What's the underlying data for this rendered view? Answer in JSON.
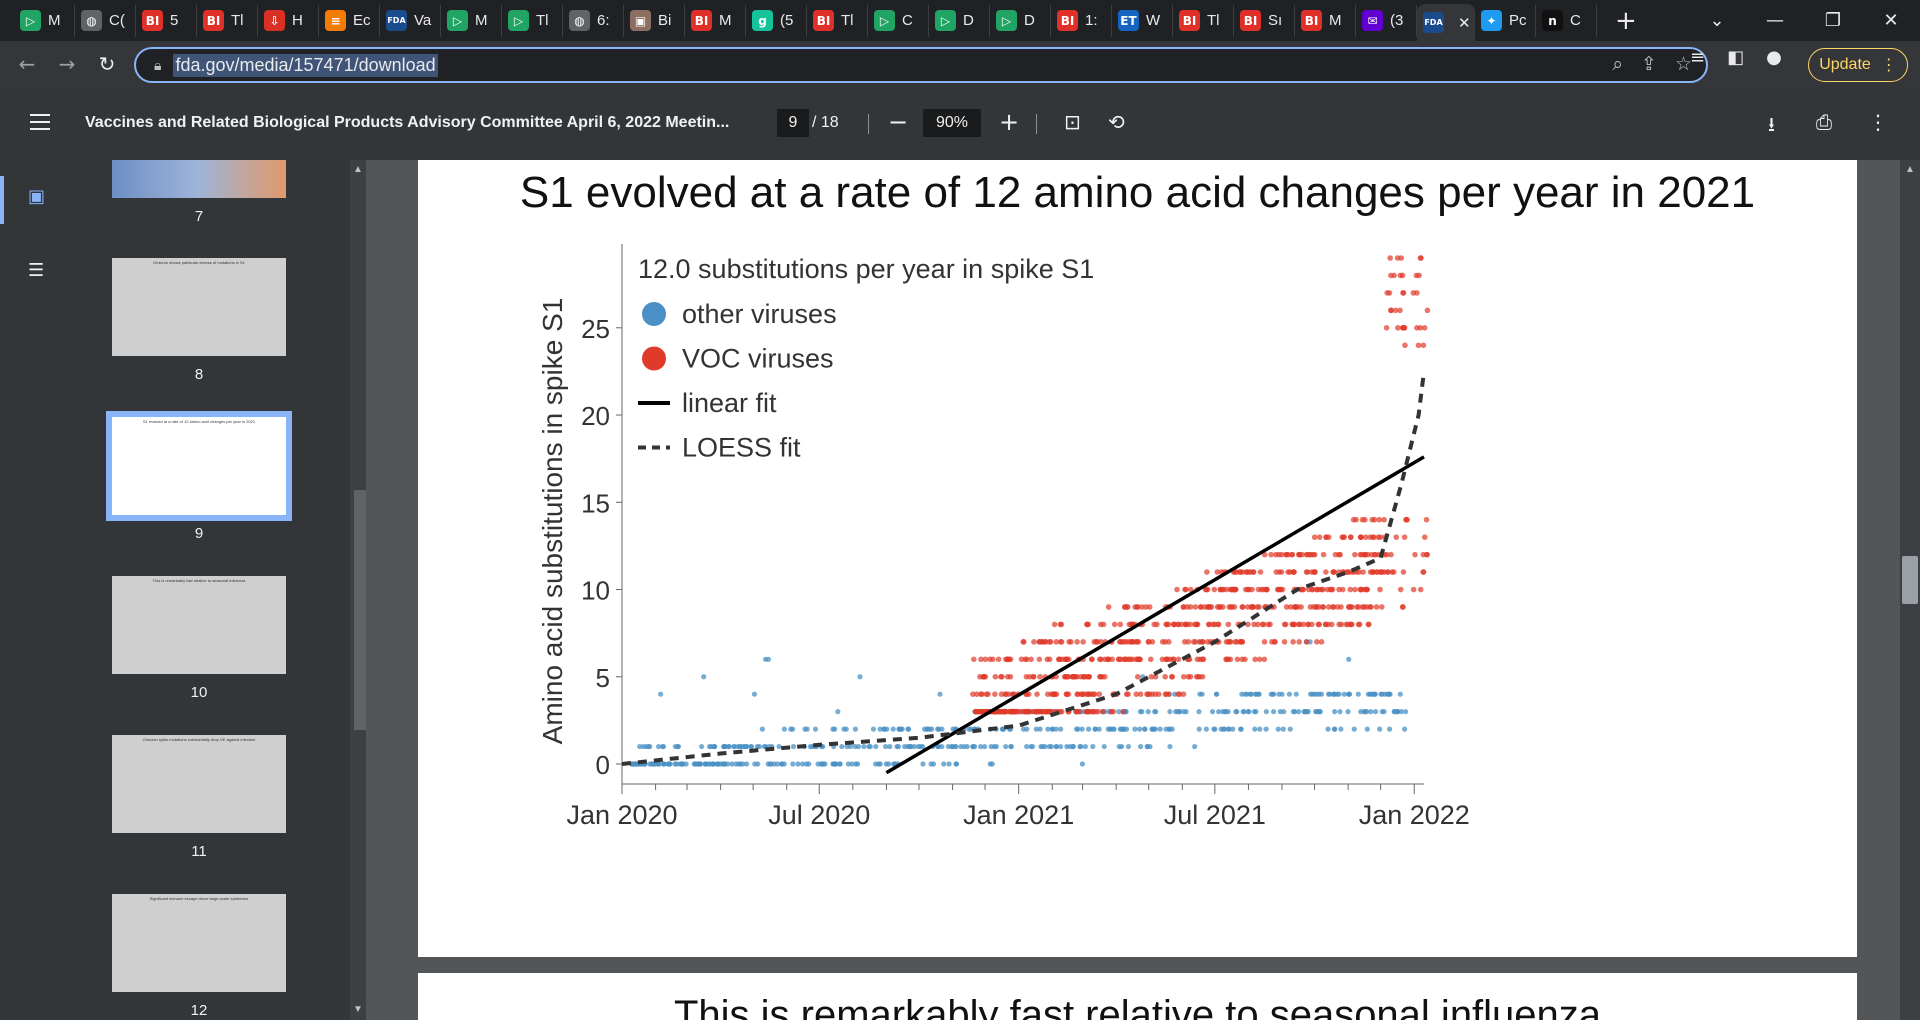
{
  "browser": {
    "tabs": [
      {
        "label": "M",
        "icon": "play-icon",
        "color": "#1fa463",
        "glyph": "▷"
      },
      {
        "label": "C(",
        "icon": "globe-icon",
        "color": "#5f6368",
        "glyph": "◍"
      },
      {
        "label": "5",
        "icon": "bi-logo-icon",
        "color": "#e0302a",
        "glyph": "BI"
      },
      {
        "label": "Tl",
        "icon": "bi-logo-icon",
        "color": "#e0302a",
        "glyph": "BI"
      },
      {
        "label": "H",
        "icon": "download-red-icon",
        "color": "#d93025",
        "glyph": "⇩"
      },
      {
        "label": "Ec",
        "icon": "bookmark-orange-icon",
        "color": "#f57c00",
        "glyph": "≡"
      },
      {
        "label": "Va",
        "icon": "fda-logo-icon",
        "color": "#1a4b8c",
        "glyph": "FDA"
      },
      {
        "label": "M",
        "icon": "play-icon",
        "color": "#1fa463",
        "glyph": "▷"
      },
      {
        "label": "Tl",
        "icon": "play-icon",
        "color": "#1fa463",
        "glyph": "▷"
      },
      {
        "label": "6:",
        "icon": "globe-icon",
        "color": "#5f6368",
        "glyph": "◍"
      },
      {
        "label": "Bi",
        "icon": "photo-icon",
        "color": "#8d6e63",
        "glyph": "▣"
      },
      {
        "label": "M",
        "icon": "bi-logo-icon",
        "color": "#e0302a",
        "glyph": "BI"
      },
      {
        "label": "(5",
        "icon": "g-logo-icon",
        "color": "#15c39a",
        "glyph": "g"
      },
      {
        "label": "Tl",
        "icon": "bi-logo-icon",
        "color": "#e0302a",
        "glyph": "BI"
      },
      {
        "label": "C",
        "icon": "play-icon",
        "color": "#1fa463",
        "glyph": "▷"
      },
      {
        "label": "D",
        "icon": "play-icon",
        "color": "#1fa463",
        "glyph": "▷"
      },
      {
        "label": "D",
        "icon": "play-icon",
        "color": "#1fa463",
        "glyph": "▷"
      },
      {
        "label": "1:",
        "icon": "bi-logo-icon",
        "color": "#e0302a",
        "glyph": "BI"
      },
      {
        "label": "W",
        "icon": "et-logo-icon",
        "color": "#1565c0",
        "glyph": "ET"
      },
      {
        "label": "Tl",
        "icon": "bi-logo-icon",
        "color": "#e0302a",
        "glyph": "BI"
      },
      {
        "label": "Sı",
        "icon": "bi-logo-icon",
        "color": "#e0302a",
        "glyph": "BI"
      },
      {
        "label": "M",
        "icon": "bi-logo-icon",
        "color": "#e0302a",
        "glyph": "BI"
      },
      {
        "label": "(3",
        "icon": "mail-icon",
        "color": "#6001d2",
        "glyph": "✉"
      },
      {
        "label": "",
        "icon": "fda-logo-icon",
        "color": "#1a4b8c",
        "glyph": "FDA",
        "active": true
      },
      {
        "label": "Pc",
        "icon": "twitter-icon",
        "color": "#1d9bf0",
        "glyph": "✦"
      },
      {
        "label": "C",
        "icon": "n-logo-icon",
        "color": "#111111",
        "glyph": "n"
      }
    ],
    "url": "fda.gov/media/157471/download",
    "update_label": "Update"
  },
  "pdf": {
    "title": "Vaccines and Related Biological Products Advisory Committee April 6, 2022 Meetin...",
    "page_current": "9",
    "page_total": "/ 18",
    "zoom": "90%",
    "thumbnails": [
      {
        "num": "7",
        "title": ""
      },
      {
        "num": "8",
        "title": "Omicron shows particular excess of mutations in S1"
      },
      {
        "num": "9",
        "title": "S1 evolved at a rate of 12 amino acid changes per year in 2021",
        "selected": true
      },
      {
        "num": "10",
        "title": "This is remarkably fast relative to seasonal influenza"
      },
      {
        "num": "11",
        "title": "Omicron spike mutations substantially drop VE against infection"
      },
      {
        "num": "12",
        "title": "Significant immune escape drove large-scale epidemics"
      }
    ],
    "slide_title": "S1 evolved at a rate of 12 amino acid changes per year in 2021",
    "next_slide_title": "This is remarkably fast relative to seasonal influenza"
  },
  "chart_data": {
    "type": "scatter",
    "title": "S1 evolved at a rate of 12 amino acid changes per year in 2021",
    "annotation": "12.0 substitutions per year in spike S1",
    "ylabel": "Amino acid substitutions in spike S1",
    "xlabel": "",
    "x_ticks": [
      "Jan 2020",
      "Jul 2020",
      "Jan 2021",
      "Jul 2021",
      "Jan 2022"
    ],
    "y_ticks": [
      0,
      5,
      10,
      15,
      20,
      25
    ],
    "ylim": [
      0,
      29
    ],
    "xlim": [
      "2020-01-01",
      "2022-01-10"
    ],
    "legend": [
      {
        "label": "other viruses",
        "marker": "circle",
        "color": "#4a90c4"
      },
      {
        "label": "VOC viruses",
        "marker": "circle",
        "color": "#e03a2a"
      },
      {
        "label": "linear fit",
        "marker": "solid-line",
        "color": "#000000"
      },
      {
        "label": "LOESS fit",
        "marker": "dashed-line",
        "color": "#333333"
      }
    ],
    "legend_position": "top-left",
    "series": [
      {
        "name": "linear fit",
        "style": "solid",
        "points": [
          [
            "2020-09-01",
            -0.5
          ],
          [
            "2022-01-10",
            17.6
          ]
        ]
      },
      {
        "name": "LOESS fit",
        "style": "dashed",
        "points": [
          [
            "2020-01-01",
            0
          ],
          [
            "2020-04-01",
            0.6
          ],
          [
            "2020-07-01",
            1.1
          ],
          [
            "2020-10-01",
            1.5
          ],
          [
            "2021-01-01",
            2.2
          ],
          [
            "2021-04-01",
            4.0
          ],
          [
            "2021-07-01",
            7.0
          ],
          [
            "2021-09-15",
            10.0
          ],
          [
            "2021-11-01",
            11.0
          ],
          [
            "2021-12-01",
            11.8
          ],
          [
            "2021-12-20",
            16.0
          ],
          [
            "2022-01-05",
            20.0
          ],
          [
            "2022-01-10",
            22.5
          ]
        ]
      },
      {
        "name": "other viruses",
        "style": "points",
        "x_range": [
          "2020-01-15",
          "2021-12-31"
        ],
        "y_range": [
          0,
          9
        ]
      },
      {
        "name": "VOC viruses",
        "style": "points",
        "x_range": [
          "2020-11-15",
          "2022-01-10"
        ],
        "y_range": [
          3,
          29
        ]
      }
    ]
  }
}
